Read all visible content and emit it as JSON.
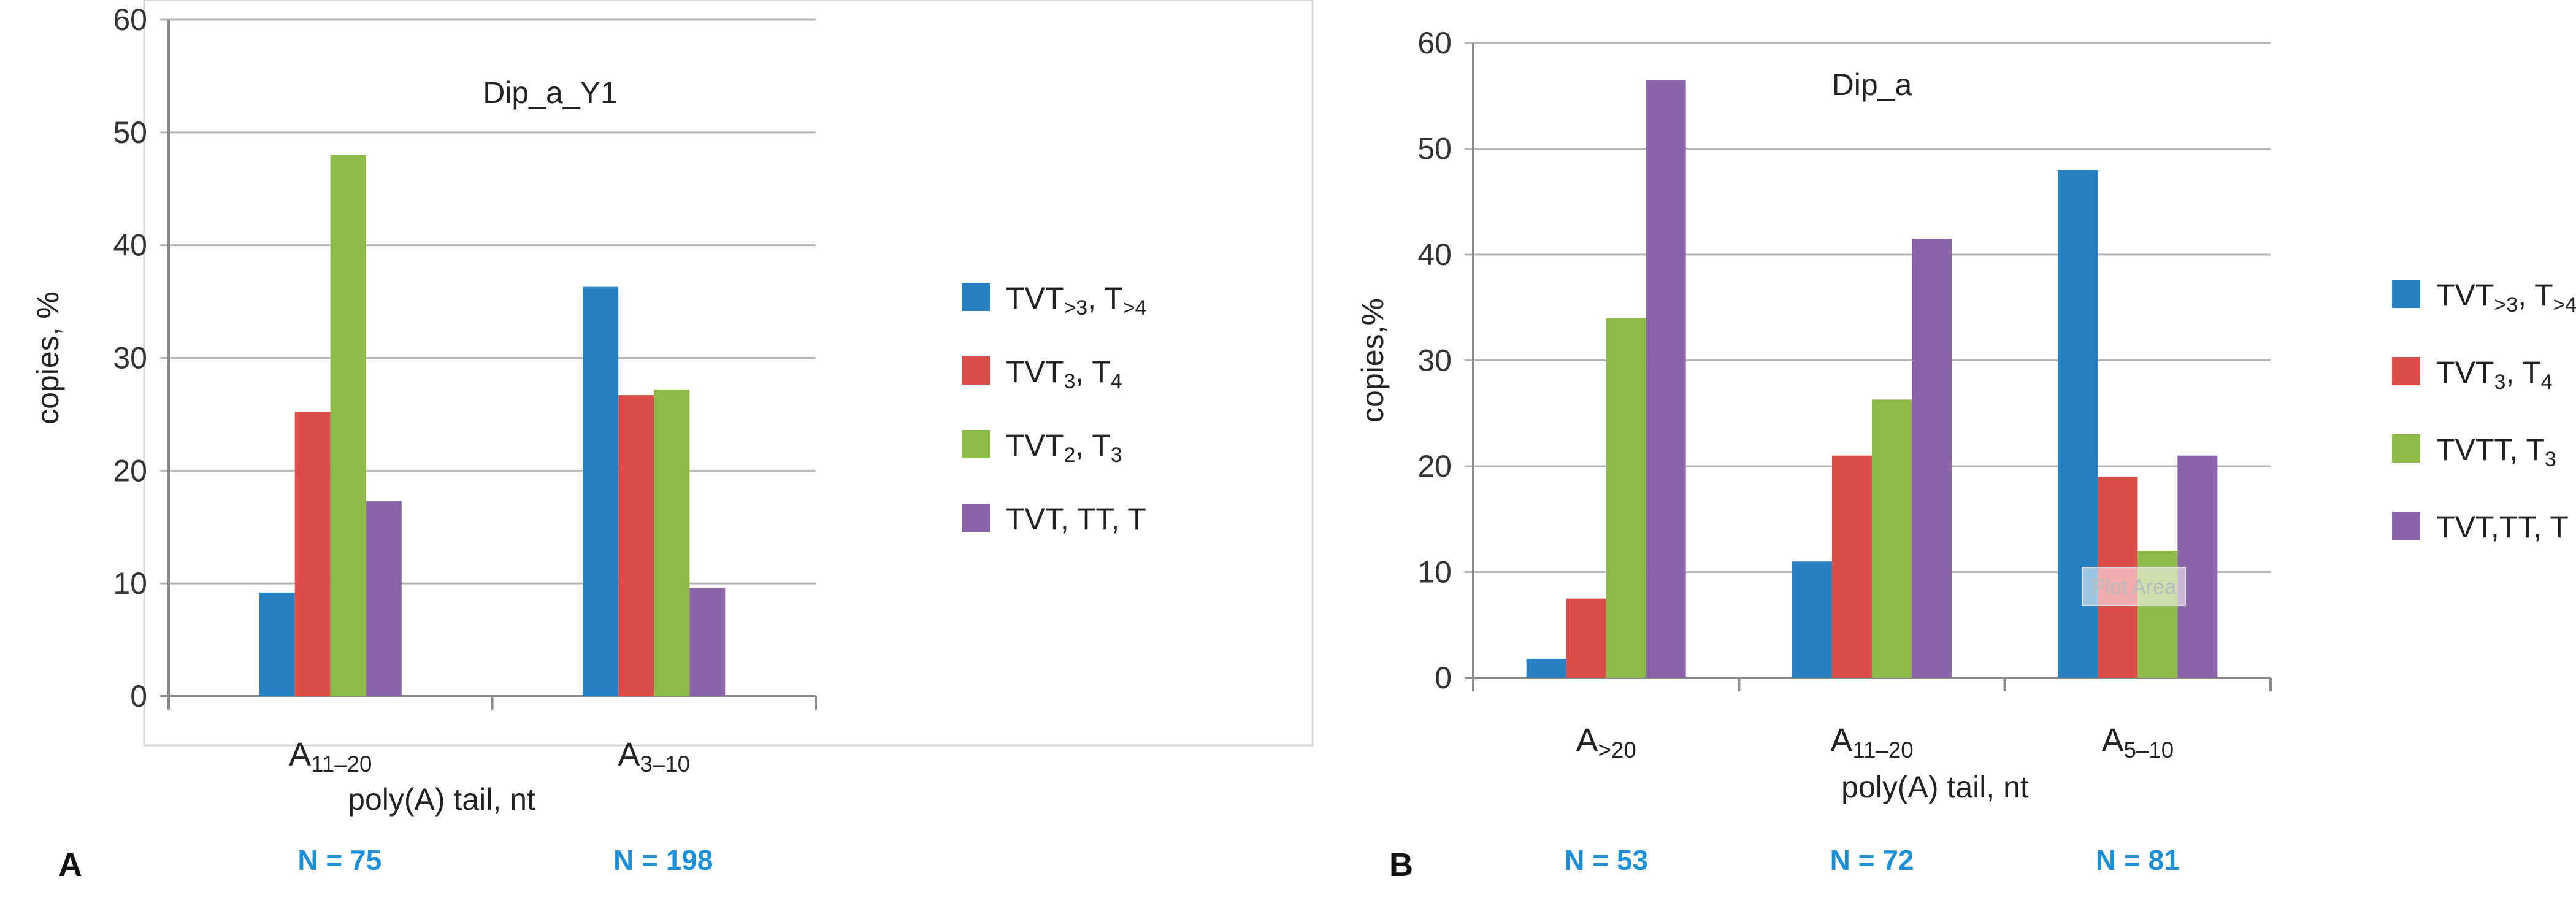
{
  "colors": [
    "#2680c2",
    "#dc4d4a",
    "#8dbb4a",
    "#8964a8"
  ],
  "chart_data": [
    {
      "type": "bar",
      "panel_label": "A",
      "title": "Dip_a_Y1",
      "xlabel": "poly(A) tail, nt",
      "ylabel": "copies, %",
      "ylim": [
        0,
        60
      ],
      "yticks": [
        "0",
        "10",
        "20",
        "30",
        "40",
        "50",
        "60"
      ],
      "grid": true,
      "legend_position": "right",
      "categories": [
        {
          "base": "A",
          "sub": "11–20"
        },
        {
          "base": "A",
          "sub": "3–10"
        }
      ],
      "n_labels": [
        "N = 75",
        "N = 198"
      ],
      "series": [
        {
          "base": "TVT",
          "sub": ">3",
          "mid": ", T",
          "sub2": ">4",
          "values": [
            9.2,
            36.3
          ]
        },
        {
          "base": "TVT",
          "sub": "3",
          "mid": ",  T",
          "sub2": "4",
          "values": [
            25.2,
            26.7
          ]
        },
        {
          "base": "TVT",
          "sub": "2",
          "mid": ",  T",
          "sub2": "3",
          "values": [
            48.0,
            27.2
          ]
        },
        {
          "base": "TVT, TT, T",
          "sub": "",
          "mid": "",
          "sub2": "",
          "values": [
            17.3,
            9.6
          ]
        }
      ]
    },
    {
      "type": "bar",
      "panel_label": "B",
      "title": "Dip_a",
      "xlabel": "poly(A) tail, nt",
      "ylabel": "copies,%",
      "ylim": [
        0,
        60
      ],
      "yticks": [
        "0",
        "10",
        "20",
        "30",
        "40",
        "50",
        "60"
      ],
      "grid": true,
      "legend_position": "right",
      "annotation": "Plot Area",
      "categories": [
        {
          "base": "A",
          "sub": ">20"
        },
        {
          "base": "A",
          "sub": "11–20"
        },
        {
          "base": "A",
          "sub": "5–10"
        }
      ],
      "n_labels": [
        "N = 53",
        "N = 72",
        "N = 81"
      ],
      "series": [
        {
          "base": "TVT",
          "sub": ">3",
          "mid": ", T",
          "sub2": ">4",
          "values": [
            1.8,
            11.0,
            48.0
          ]
        },
        {
          "base": "TVT",
          "sub": "3",
          "mid": ", T",
          "sub2": "4",
          "values": [
            7.5,
            21.0,
            19.0
          ]
        },
        {
          "base": "TVTT, T",
          "sub": "",
          "mid": "",
          "sub2": "3",
          "values": [
            34.0,
            26.3,
            12.0
          ]
        },
        {
          "base": "TVT,TT, T",
          "sub": "",
          "mid": "",
          "sub2": "",
          "values": [
            56.5,
            41.5,
            21.0
          ]
        }
      ]
    }
  ]
}
